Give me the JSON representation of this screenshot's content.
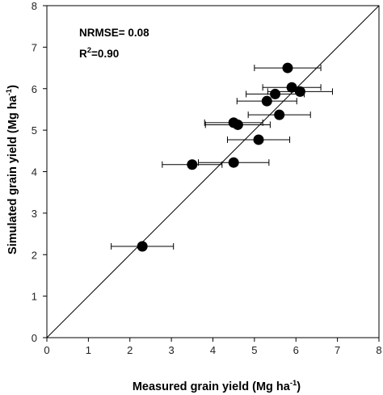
{
  "chart_data": {
    "type": "scatter",
    "xlabel": "Measured grain yield (Mg ha",
    "xlabel_sup": "-1",
    "xlabel_close": ")",
    "ylabel": "Simulated grain yield (Mg ha",
    "ylabel_sup": "-1",
    "ylabel_close": ")",
    "xlim": [
      0,
      8
    ],
    "ylim": [
      0,
      8
    ],
    "x_ticks": [
      0,
      1,
      2,
      3,
      4,
      5,
      6,
      7,
      8
    ],
    "y_ticks": [
      0,
      1,
      2,
      3,
      4,
      5,
      6,
      7,
      8
    ],
    "grid": false,
    "reference_line": "1:1",
    "annotations": {
      "nrmse": "NRMSE= 0.08",
      "r2_prefix": "R",
      "r2_sup": "2",
      "r2_value": "=0.90"
    },
    "points": [
      {
        "x": 2.3,
        "y": 2.2,
        "xerr": 0.75
      },
      {
        "x": 3.5,
        "y": 4.17,
        "xerr": 0.72
      },
      {
        "x": 4.5,
        "y": 4.22,
        "xerr": 0.85
      },
      {
        "x": 4.5,
        "y": 5.18,
        "xerr": 0.7
      },
      {
        "x": 4.6,
        "y": 5.13,
        "xerr": 0.78
      },
      {
        "x": 5.1,
        "y": 4.77,
        "xerr": 0.75
      },
      {
        "x": 5.3,
        "y": 5.7,
        "xerr": 0.72
      },
      {
        "x": 5.5,
        "y": 5.87,
        "xerr": 0.7
      },
      {
        "x": 5.6,
        "y": 5.37,
        "xerr": 0.75
      },
      {
        "x": 5.8,
        "y": 6.5,
        "xerr": 0.8
      },
      {
        "x": 5.9,
        "y": 6.03,
        "xerr": 0.7
      },
      {
        "x": 6.1,
        "y": 5.93,
        "xerr": 0.78
      }
    ]
  }
}
